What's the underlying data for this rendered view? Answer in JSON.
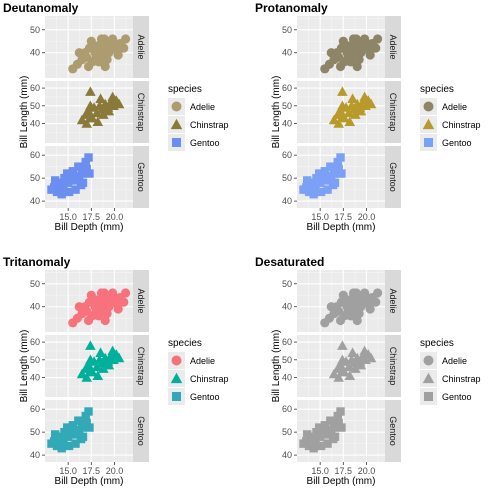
{
  "chart_data": [
    {
      "type": "scatter",
      "title": "Deutanomaly",
      "xlabel": "Bill Depth (mm)",
      "ylabel": "Bill Length (mm)",
      "xlim": [
        12.5,
        22.0
      ],
      "x_ticks": [
        15.0,
        17.5,
        20.0
      ],
      "x_tick_labels": [
        "15.0",
        "17.5",
        "20.0"
      ],
      "facets": [
        {
          "label": "Adelie",
          "ylim": [
            29,
            56
          ],
          "y_ticks": [
            40,
            50
          ],
          "y_tick_labels": [
            "40",
            "50"
          ]
        },
        {
          "label": "Chinstrap",
          "ylim": [
            29,
            64
          ],
          "y_ticks": [
            40,
            50,
            60
          ],
          "y_tick_labels": [
            "40",
            "50",
            "60"
          ]
        },
        {
          "label": "Gentoo",
          "ylim": [
            37,
            64
          ],
          "y_ticks": [
            40,
            50,
            60
          ],
          "y_tick_labels": [
            "40",
            "50",
            "60"
          ]
        }
      ],
      "grid": true,
      "legend_position": "right",
      "legend_title": "species",
      "series": [
        {
          "name": "Adelie",
          "shape": "circle",
          "color": "#ad9c70",
          "x": [
            15.5,
            16.0,
            16.5,
            17.0,
            17.3,
            17.6,
            17.9,
            18.2,
            18.5,
            18.8,
            19.1,
            19.4,
            19.7,
            20.0,
            20.3,
            20.6,
            21.0,
            16.8,
            17.5,
            18.0,
            18.6,
            19.2,
            19.8,
            20.4,
            17.2,
            18.3,
            19.0,
            16.2,
            18.9,
            21.2
          ],
          "y": [
            33,
            35,
            37,
            38,
            42,
            36,
            40,
            43,
            39,
            41,
            44,
            40,
            42,
            43,
            41,
            44,
            42,
            40,
            45,
            38,
            46,
            37,
            46,
            39,
            34,
            36,
            34,
            40,
            46,
            46
          ]
        },
        {
          "name": "Chinstrap",
          "shape": "triangle",
          "color": "#8a7a3a",
          "x": [
            16.5,
            16.9,
            17.2,
            17.5,
            17.8,
            18.1,
            18.4,
            18.7,
            19.0,
            19.3,
            19.6,
            19.9,
            20.2,
            20.5,
            17.0,
            17.6,
            18.2,
            18.8,
            19.4,
            17.4,
            18.5,
            19.8,
            17.4
          ],
          "y": [
            42,
            45,
            47,
            44,
            49,
            46,
            50,
            48,
            51,
            49,
            52,
            50,
            53,
            51,
            40,
            43,
            41,
            45,
            47,
            50,
            54,
            55,
            58
          ]
        },
        {
          "name": "Gentoo",
          "shape": "square",
          "color": "#6b8ef0",
          "x": [
            13.2,
            13.5,
            13.8,
            14.0,
            14.2,
            14.5,
            14.8,
            15.0,
            15.3,
            15.6,
            15.9,
            16.2,
            16.5,
            16.8,
            17.0,
            14.3,
            15.1,
            15.8,
            16.4,
            13.6,
            14.9,
            15.5,
            16.1,
            16.9,
            17.2,
            17.3,
            16.6,
            14.6
          ],
          "y": [
            45,
            46,
            44,
            47,
            48,
            46,
            49,
            48,
            50,
            49,
            51,
            50,
            52,
            53,
            54,
            43,
            44,
            45,
            47,
            49,
            52,
            53,
            55,
            57,
            59,
            52,
            48,
            50
          ]
        }
      ]
    },
    {
      "type": "scatter",
      "title": "Protanomaly",
      "xlabel": "Bill Depth (mm)",
      "ylabel": "Bill Length (mm)",
      "xlim": [
        12.5,
        22.0
      ],
      "x_ticks": [
        15.0,
        17.5,
        20.0
      ],
      "x_tick_labels": [
        "15.0",
        "17.5",
        "20.0"
      ],
      "facets": [
        {
          "label": "Adelie",
          "ylim": [
            29,
            56
          ],
          "y_ticks": [
            40,
            50
          ],
          "y_tick_labels": [
            "40",
            "50"
          ]
        },
        {
          "label": "Chinstrap",
          "ylim": [
            29,
            64
          ],
          "y_ticks": [
            40,
            50,
            60
          ],
          "y_tick_labels": [
            "40",
            "50",
            "60"
          ]
        },
        {
          "label": "Gentoo",
          "ylim": [
            37,
            64
          ],
          "y_ticks": [
            40,
            50,
            60
          ],
          "y_tick_labels": [
            "40",
            "50",
            "60"
          ]
        }
      ],
      "grid": true,
      "legend_position": "right",
      "legend_title": "species",
      "series": [
        {
          "name": "Adelie",
          "shape": "circle",
          "color": "#8e8468",
          "x": [
            15.5,
            16.0,
            16.5,
            17.0,
            17.3,
            17.6,
            17.9,
            18.2,
            18.5,
            18.8,
            19.1,
            19.4,
            19.7,
            20.0,
            20.3,
            20.6,
            21.0,
            16.8,
            17.5,
            18.0,
            18.6,
            19.2,
            19.8,
            20.4,
            17.2,
            18.3,
            19.0,
            16.2,
            18.9,
            21.2
          ],
          "y": [
            33,
            35,
            37,
            38,
            42,
            36,
            40,
            43,
            39,
            41,
            44,
            40,
            42,
            43,
            41,
            44,
            42,
            40,
            45,
            38,
            46,
            37,
            46,
            39,
            34,
            36,
            34,
            40,
            46,
            46
          ]
        },
        {
          "name": "Chinstrap",
          "shape": "triangle",
          "color": "#b89a2a",
          "x": [
            16.5,
            16.9,
            17.2,
            17.5,
            17.8,
            18.1,
            18.4,
            18.7,
            19.0,
            19.3,
            19.6,
            19.9,
            20.2,
            20.5,
            17.0,
            17.6,
            18.2,
            18.8,
            19.4,
            17.4,
            18.5,
            19.8,
            17.4
          ],
          "y": [
            42,
            45,
            47,
            44,
            49,
            46,
            50,
            48,
            51,
            49,
            52,
            50,
            53,
            51,
            40,
            43,
            41,
            45,
            47,
            50,
            54,
            55,
            58
          ]
        },
        {
          "name": "Gentoo",
          "shape": "square",
          "color": "#7ba0f5",
          "x": [
            13.2,
            13.5,
            13.8,
            14.0,
            14.2,
            14.5,
            14.8,
            15.0,
            15.3,
            15.6,
            15.9,
            16.2,
            16.5,
            16.8,
            17.0,
            14.3,
            15.1,
            15.8,
            16.4,
            13.6,
            14.9,
            15.5,
            16.1,
            16.9,
            17.2,
            17.3,
            16.6,
            14.6
          ],
          "y": [
            45,
            46,
            44,
            47,
            48,
            46,
            49,
            48,
            50,
            49,
            51,
            50,
            52,
            53,
            54,
            43,
            44,
            45,
            47,
            49,
            52,
            53,
            55,
            57,
            59,
            52,
            48,
            50
          ]
        }
      ]
    },
    {
      "type": "scatter",
      "title": "Tritanomaly",
      "xlabel": "Bill Depth (mm)",
      "ylabel": "Bill Length (mm)",
      "xlim": [
        12.5,
        22.0
      ],
      "x_ticks": [
        15.0,
        17.5,
        20.0
      ],
      "x_tick_labels": [
        "15.0",
        "17.5",
        "20.0"
      ],
      "facets": [
        {
          "label": "Adelie",
          "ylim": [
            29,
            56
          ],
          "y_ticks": [
            40,
            50
          ],
          "y_tick_labels": [
            "40",
            "50"
          ]
        },
        {
          "label": "Chinstrap",
          "ylim": [
            29,
            64
          ],
          "y_ticks": [
            40,
            50,
            60
          ],
          "y_tick_labels": [
            "40",
            "50",
            "60"
          ]
        },
        {
          "label": "Gentoo",
          "ylim": [
            37,
            64
          ],
          "y_ticks": [
            40,
            50,
            60
          ],
          "y_tick_labels": [
            "40",
            "50",
            "60"
          ]
        }
      ],
      "grid": true,
      "legend_position": "right",
      "legend_title": "species",
      "series": [
        {
          "name": "Adelie",
          "shape": "circle",
          "color": "#f7727d",
          "x": [
            15.5,
            16.0,
            16.5,
            17.0,
            17.3,
            17.6,
            17.9,
            18.2,
            18.5,
            18.8,
            19.1,
            19.4,
            19.7,
            20.0,
            20.3,
            20.6,
            21.0,
            16.8,
            17.5,
            18.0,
            18.6,
            19.2,
            19.8,
            20.4,
            17.2,
            18.3,
            19.0,
            16.2,
            18.9,
            21.2
          ],
          "y": [
            33,
            35,
            37,
            38,
            42,
            36,
            40,
            43,
            39,
            41,
            44,
            40,
            42,
            43,
            41,
            44,
            42,
            40,
            45,
            38,
            46,
            37,
            46,
            39,
            34,
            36,
            34,
            40,
            46,
            46
          ]
        },
        {
          "name": "Chinstrap",
          "shape": "triangle",
          "color": "#00b09a",
          "x": [
            16.5,
            16.9,
            17.2,
            17.5,
            17.8,
            18.1,
            18.4,
            18.7,
            19.0,
            19.3,
            19.6,
            19.9,
            20.2,
            20.5,
            17.0,
            17.6,
            18.2,
            18.8,
            19.4,
            17.4,
            18.5,
            19.8,
            17.4
          ],
          "y": [
            42,
            45,
            47,
            44,
            49,
            46,
            50,
            48,
            51,
            49,
            52,
            50,
            53,
            51,
            40,
            43,
            41,
            45,
            47,
            50,
            54,
            55,
            58
          ]
        },
        {
          "name": "Gentoo",
          "shape": "square",
          "color": "#33a9b7",
          "x": [
            13.2,
            13.5,
            13.8,
            14.0,
            14.2,
            14.5,
            14.8,
            15.0,
            15.3,
            15.6,
            15.9,
            16.2,
            16.5,
            16.8,
            17.0,
            14.3,
            15.1,
            15.8,
            16.4,
            13.6,
            14.9,
            15.5,
            16.1,
            16.9,
            17.2,
            17.3,
            16.6,
            14.6
          ],
          "y": [
            45,
            46,
            44,
            47,
            48,
            46,
            49,
            48,
            50,
            49,
            51,
            50,
            52,
            53,
            54,
            43,
            44,
            45,
            47,
            49,
            52,
            53,
            55,
            57,
            59,
            52,
            48,
            50
          ]
        }
      ]
    },
    {
      "type": "scatter",
      "title": "Desaturated",
      "xlabel": "Bill Depth (mm)",
      "ylabel": "Bill Length (mm)",
      "xlim": [
        12.5,
        22.0
      ],
      "x_ticks": [
        15.0,
        17.5,
        20.0
      ],
      "x_tick_labels": [
        "15.0",
        "17.5",
        "20.0"
      ],
      "facets": [
        {
          "label": "Adelie",
          "ylim": [
            29,
            56
          ],
          "y_ticks": [
            40,
            50
          ],
          "y_tick_labels": [
            "40",
            "50"
          ]
        },
        {
          "label": "Chinstrap",
          "ylim": [
            29,
            64
          ],
          "y_ticks": [
            40,
            50,
            60
          ],
          "y_tick_labels": [
            "40",
            "50",
            "60"
          ]
        },
        {
          "label": "Gentoo",
          "ylim": [
            37,
            64
          ],
          "y_ticks": [
            40,
            50,
            60
          ],
          "y_tick_labels": [
            "40",
            "50",
            "60"
          ]
        }
      ],
      "grid": true,
      "legend_position": "right",
      "legend_title": "species",
      "series": [
        {
          "name": "Adelie",
          "shape": "circle",
          "color": "#a0a0a0",
          "x": [
            15.5,
            16.0,
            16.5,
            17.0,
            17.3,
            17.6,
            17.9,
            18.2,
            18.5,
            18.8,
            19.1,
            19.4,
            19.7,
            20.0,
            20.3,
            20.6,
            21.0,
            16.8,
            17.5,
            18.0,
            18.6,
            19.2,
            19.8,
            20.4,
            17.2,
            18.3,
            19.0,
            16.2,
            18.9,
            21.2
          ],
          "y": [
            33,
            35,
            37,
            38,
            42,
            36,
            40,
            43,
            39,
            41,
            44,
            40,
            42,
            43,
            41,
            44,
            42,
            40,
            45,
            38,
            46,
            37,
            46,
            39,
            34,
            36,
            34,
            40,
            46,
            46
          ]
        },
        {
          "name": "Chinstrap",
          "shape": "triangle",
          "color": "#a0a0a0",
          "x": [
            16.5,
            16.9,
            17.2,
            17.5,
            17.8,
            18.1,
            18.4,
            18.7,
            19.0,
            19.3,
            19.6,
            19.9,
            20.2,
            20.5,
            17.0,
            17.6,
            18.2,
            18.8,
            19.4,
            17.4,
            18.5,
            19.8,
            17.4
          ],
          "y": [
            42,
            45,
            47,
            44,
            49,
            46,
            50,
            48,
            51,
            49,
            52,
            50,
            53,
            51,
            40,
            43,
            41,
            45,
            47,
            50,
            54,
            55,
            58
          ]
        },
        {
          "name": "Gentoo",
          "shape": "square",
          "color": "#a0a0a0",
          "x": [
            13.2,
            13.5,
            13.8,
            14.0,
            14.2,
            14.5,
            14.8,
            15.0,
            15.3,
            15.6,
            15.9,
            16.2,
            16.5,
            16.8,
            17.0,
            14.3,
            15.1,
            15.8,
            16.4,
            13.6,
            14.9,
            15.5,
            16.1,
            16.9,
            17.2,
            17.3,
            16.6,
            14.6
          ],
          "y": [
            45,
            46,
            44,
            47,
            48,
            46,
            49,
            48,
            50,
            49,
            51,
            50,
            52,
            53,
            54,
            43,
            44,
            45,
            47,
            49,
            52,
            53,
            55,
            57,
            59,
            52,
            48,
            50
          ]
        }
      ]
    }
  ]
}
